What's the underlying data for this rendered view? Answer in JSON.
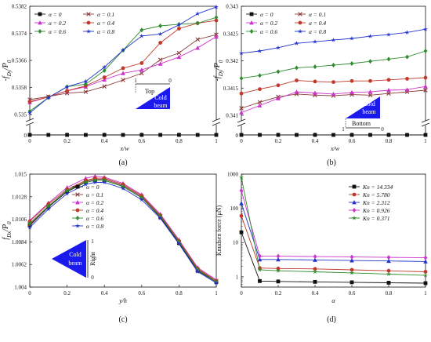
{
  "figure": {
    "panel_labels": [
      "(a)",
      "(b)",
      "(c)",
      "(d)"
    ]
  },
  "chart_data": [
    {
      "panel": "(a)",
      "type": "line",
      "xlabel": "x/w",
      "ylabel": "-f_Dy/P_0",
      "xlim": [
        0,
        1
      ],
      "ylim": [
        0.535,
        0.5382
      ],
      "axis_break": true,
      "baseline_value_label": "0",
      "xticks": [
        "0",
        "0.2",
        "0.4",
        "0.6",
        "0.8",
        "1"
      ],
      "yticks": [
        "0.535",
        "0.5358",
        "0.5366",
        "0.5374",
        "0.5382"
      ],
      "legend": {
        "position": "top",
        "columns": 2
      },
      "annotation": {
        "side_label": "Top",
        "beam_label": [
          "Cold",
          "beam"
        ],
        "scale_low": "1",
        "scale_high": "0"
      },
      "x": [
        0,
        0.1,
        0.2,
        0.3,
        0.4,
        0.5,
        0.6,
        0.7,
        0.8,
        0.9,
        1.0
      ],
      "series": [
        {
          "name": "α = 0",
          "color": "#111111",
          "marker": "square",
          "on_baseline": true,
          "values": [
            0,
            0,
            0,
            0,
            0,
            0,
            0,
            0,
            0,
            0,
            0
          ]
        },
        {
          "name": "α = 0.1",
          "color": "#8b3a3a",
          "marker": "x",
          "values": [
            0.53544,
            0.53553,
            0.53563,
            0.53567,
            0.53583,
            0.53602,
            0.53622,
            0.53662,
            0.53682,
            0.53722,
            0.53736
          ]
        },
        {
          "name": "α = 0.2",
          "color": "#cc33cc",
          "marker": "triangle",
          "values": [
            0.53536,
            0.53552,
            0.5357,
            0.53582,
            0.53603,
            0.53622,
            0.53632,
            0.5365,
            0.5367,
            0.53697,
            0.5373
          ]
        },
        {
          "name": "α = 0.4",
          "color": "#c0392b",
          "marker": "circle",
          "values": [
            0.53538,
            0.53552,
            0.5357,
            0.53585,
            0.5361,
            0.53637,
            0.53652,
            0.53712,
            0.53754,
            0.5377,
            0.53778
          ]
        },
        {
          "name": "α = 0.6",
          "color": "#2e8b2e",
          "marker": "diamond",
          "values": [
            0.5351,
            0.5355,
            0.53582,
            0.5359,
            0.5363,
            0.5369,
            0.5375,
            0.53762,
            0.53767,
            0.5377,
            0.53787
          ]
        },
        {
          "name": "α = 0.8",
          "color": "#2233cc",
          "marker": "star",
          "values": [
            0.53505,
            0.5355,
            0.53582,
            0.53598,
            0.5364,
            0.5369,
            0.53732,
            0.53738,
            0.53765,
            0.53798,
            0.53818
          ]
        }
      ]
    },
    {
      "panel": "(b)",
      "type": "line",
      "xlabel": "x/w",
      "ylabel": "-f_Dy/P_0",
      "xlim": [
        0,
        1
      ],
      "ylim": [
        0.341,
        0.343
      ],
      "axis_break": true,
      "baseline_value_label": "0",
      "xticks": [
        "0",
        "0.2",
        "0.4",
        "0.6",
        "0.8",
        "1"
      ],
      "yticks": [
        "0.341",
        "0.3415",
        "0.342",
        "0.3425",
        "0.343"
      ],
      "legend": {
        "position": "top",
        "columns": 2
      },
      "annotation": {
        "side_label": "Bottom",
        "beam_label": [
          "Cold",
          "beam"
        ],
        "scale_low": "1",
        "scale_high": "0"
      },
      "x": [
        0,
        0.1,
        0.2,
        0.3,
        0.4,
        0.5,
        0.6,
        0.7,
        0.8,
        0.9,
        1.0
      ],
      "series": [
        {
          "name": "α = 0",
          "color": "#111111",
          "marker": "square",
          "on_baseline": true,
          "values": [
            0,
            0,
            0,
            0,
            0,
            0,
            0,
            0,
            0,
            0,
            0
          ]
        },
        {
          "name": "α = 0.1",
          "color": "#8b3a3a",
          "marker": "x",
          "values": [
            0.34113,
            0.34124,
            0.34134,
            0.34139,
            0.34137,
            0.34136,
            0.34138,
            0.34137,
            0.3414,
            0.34143,
            0.34146
          ]
        },
        {
          "name": "α = 0.2",
          "color": "#cc33cc",
          "marker": "triangle",
          "values": [
            0.34105,
            0.34118,
            0.34131,
            0.34143,
            0.34141,
            0.34139,
            0.34142,
            0.34143,
            0.34146,
            0.34147,
            0.34153
          ]
        },
        {
          "name": "α = 0.4",
          "color": "#c0392b",
          "marker": "circle",
          "values": [
            0.3414,
            0.34148,
            0.34155,
            0.34164,
            0.34162,
            0.34161,
            0.34163,
            0.34163,
            0.34165,
            0.34167,
            0.34169
          ]
        },
        {
          "name": "α = 0.6",
          "color": "#2e8b2e",
          "marker": "diamond",
          "values": [
            0.34168,
            0.34173,
            0.3418,
            0.34187,
            0.34189,
            0.34192,
            0.34195,
            0.34199,
            0.34203,
            0.34207,
            0.34218
          ]
        },
        {
          "name": "α = 0.8",
          "color": "#2233cc",
          "marker": "star",
          "values": [
            0.34214,
            0.34218,
            0.34224,
            0.34232,
            0.34235,
            0.34238,
            0.34241,
            0.34245,
            0.34248,
            0.34252,
            0.34258
          ]
        }
      ]
    },
    {
      "panel": "(c)",
      "type": "line",
      "xlabel": "y/h",
      "ylabel": "f_Dx/P_0",
      "xlim": [
        0,
        1
      ],
      "ylim": [
        1.004,
        1.015
      ],
      "xticks": [
        "0",
        "0.2",
        "0.4",
        "0.6",
        "0.8",
        "1"
      ],
      "yticks": [
        "1.004",
        "1.0062",
        "1.0084",
        "1.0106",
        "1.0128",
        "1.015"
      ],
      "legend": {
        "position": "right",
        "columns": 1
      },
      "annotation": {
        "side_label": "Right",
        "beam_label": [
          "Cold",
          "beam"
        ],
        "scale_low": "0",
        "scale_high": "1"
      },
      "x": [
        0,
        0.1,
        0.2,
        0.3,
        0.35,
        0.4,
        0.5,
        0.6,
        0.7,
        0.8,
        0.9,
        1.0
      ],
      "series": [
        {
          "name": "α = 0",
          "color": "#111111",
          "marker": "square",
          "values": [
            1.01,
            1.0118,
            1.0133,
            1.0142,
            1.0144,
            1.0144,
            1.0138,
            1.0127,
            1.0108,
            1.0083,
            1.0056,
            1.0045
          ]
        },
        {
          "name": "α = 0.1",
          "color": "#8b3a3a",
          "marker": "x",
          "values": [
            1.0101,
            1.0119,
            1.0134,
            1.0143,
            1.0145,
            1.0145,
            1.0139,
            1.0128,
            1.0109,
            1.0084,
            1.0057,
            1.0046
          ]
        },
        {
          "name": "α = 0.2",
          "color": "#cc33cc",
          "marker": "triangle",
          "values": [
            1.0105,
            1.0122,
            1.0137,
            1.0146,
            1.0148,
            1.0147,
            1.0141,
            1.013,
            1.0111,
            1.0086,
            1.0059,
            1.0047
          ]
        },
        {
          "name": "α = 0.4",
          "color": "#c0392b",
          "marker": "circle",
          "values": [
            1.0104,
            1.0121,
            1.0135,
            1.0144,
            1.0146,
            1.0146,
            1.014,
            1.0129,
            1.011,
            1.0085,
            1.0058,
            1.0046
          ]
        },
        {
          "name": "α = 0.6",
          "color": "#2e8b2e",
          "marker": "diamond",
          "values": [
            1.0102,
            1.0119,
            1.0134,
            1.0142,
            1.0144,
            1.0144,
            1.0138,
            1.0127,
            1.0109,
            1.0084,
            1.0057,
            1.0045
          ]
        },
        {
          "name": "α = 0.8",
          "color": "#2233cc",
          "marker": "star",
          "values": [
            1.0098,
            1.0116,
            1.0131,
            1.014,
            1.0142,
            1.0142,
            1.0136,
            1.0125,
            1.0107,
            1.0082,
            1.0055,
            1.0044
          ]
        }
      ]
    },
    {
      "panel": "(d)",
      "type": "line",
      "xlabel": "α",
      "ylabel": "Knudsen force (μN)",
      "xlim": [
        0,
        1
      ],
      "ylim": [
        0.5,
        1000
      ],
      "yscale": "log",
      "xticks": [
        "0",
        "0.2",
        "0.4",
        "0.6",
        "0.8",
        "1"
      ],
      "yticks": [
        "1",
        "10",
        "100",
        "1000"
      ],
      "legend": {
        "position": "top-right",
        "columns": 1
      },
      "x": [
        0,
        0.1,
        0.2,
        0.4,
        0.6,
        0.8,
        1.0
      ],
      "series": [
        {
          "name": "Kn = 14.334",
          "color": "#111111",
          "marker": "square",
          "values": [
            20,
            0.75,
            0.73,
            0.71,
            0.69,
            0.67,
            0.65
          ]
        },
        {
          "name": "Kn = 5.780",
          "color": "#c0392b",
          "marker": "circle",
          "values": [
            60,
            1.8,
            1.75,
            1.7,
            1.6,
            1.5,
            1.4
          ]
        },
        {
          "name": "Kn = 2.312",
          "color": "#2233cc",
          "marker": "triangle",
          "values": [
            140,
            3.2,
            3.2,
            3.1,
            3.0,
            2.9,
            2.8
          ]
        },
        {
          "name": "Kn = 0.926",
          "color": "#cc33cc",
          "marker": "diamond",
          "values": [
            330,
            4.0,
            4.0,
            3.9,
            3.8,
            3.7,
            3.6
          ]
        },
        {
          "name": "Kn = 0.371",
          "color": "#2e8b2e",
          "marker": "star",
          "values": [
            800,
            1.6,
            1.5,
            1.4,
            1.3,
            1.2,
            1.1
          ]
        }
      ]
    }
  ]
}
